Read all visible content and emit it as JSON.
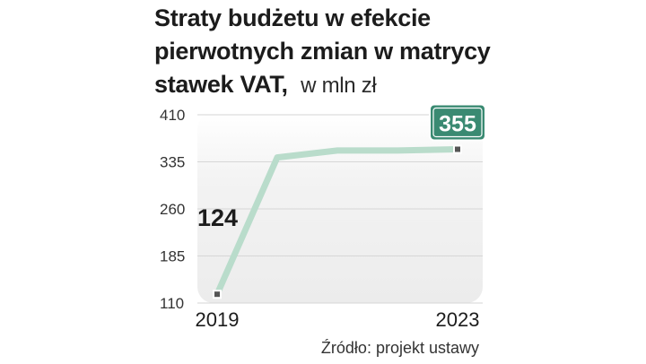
{
  "title": {
    "line1": "Straty budżetu  w efekcie",
    "line2": "pierwotnych zmian w matrycy",
    "line3": "stawek VAT,",
    "unit": "w mln zł"
  },
  "source": "Źródło: projekt ustawy",
  "colors": {
    "line": "#b9dccb",
    "plot_bg": "#f1f1f1",
    "callout": "#3a8a72",
    "marker": "#555555",
    "text": "#1c1c1c"
  },
  "chart_data": {
    "type": "line",
    "x": [
      2019,
      2020,
      2021,
      2022,
      2023
    ],
    "x_tick_labels": [
      "2019",
      "2023"
    ],
    "series": [
      {
        "values": [
          124,
          342,
          353,
          353,
          355
        ]
      }
    ],
    "point_labels": {
      "first": "124",
      "last": "355"
    },
    "y_ticks": [
      "410",
      "335",
      "260",
      "185",
      "110"
    ],
    "ylim": [
      110,
      410
    ],
    "grid": true,
    "legend": "none"
  }
}
